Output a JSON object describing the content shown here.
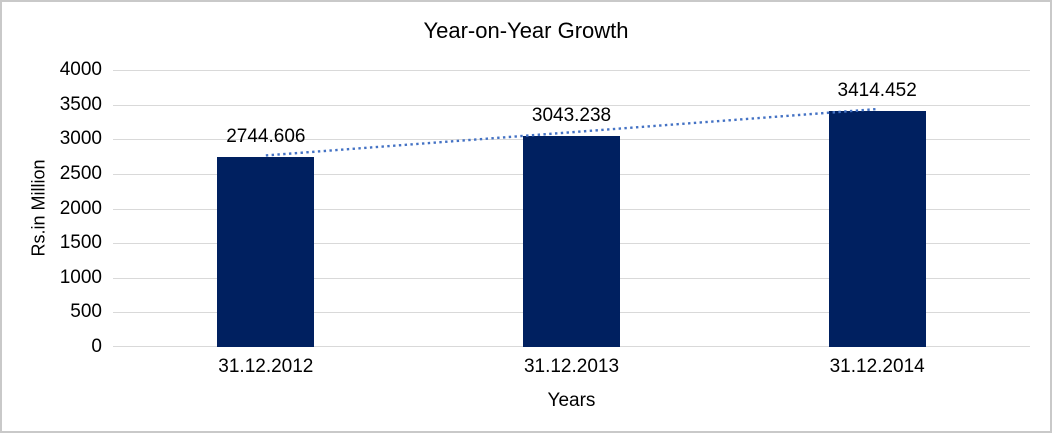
{
  "frame": {
    "background": "#ffffff",
    "border_color": "#c9c9c9"
  },
  "chart_data": {
    "type": "bar",
    "title": "Year-on-Year Growth",
    "xlabel": "Years",
    "ylabel": "Rs.in Million",
    "categories": [
      "31.12.2012",
      "31.12.2013",
      "31.12.2014"
    ],
    "values": [
      2744.606,
      3043.238,
      3414.452
    ],
    "data_labels": [
      "2744.606",
      "3043.238",
      "3414.452"
    ],
    "ylim": [
      0,
      4000
    ],
    "yticks": [
      0,
      500,
      1000,
      1500,
      2000,
      2500,
      3000,
      3500,
      4000
    ],
    "grid": true,
    "legend_position": "none",
    "bar_color": "#002060",
    "gridline_color": "#d9d9d9",
    "trendline": {
      "type": "linear",
      "style": "dotted",
      "color": "#4472c4"
    }
  }
}
